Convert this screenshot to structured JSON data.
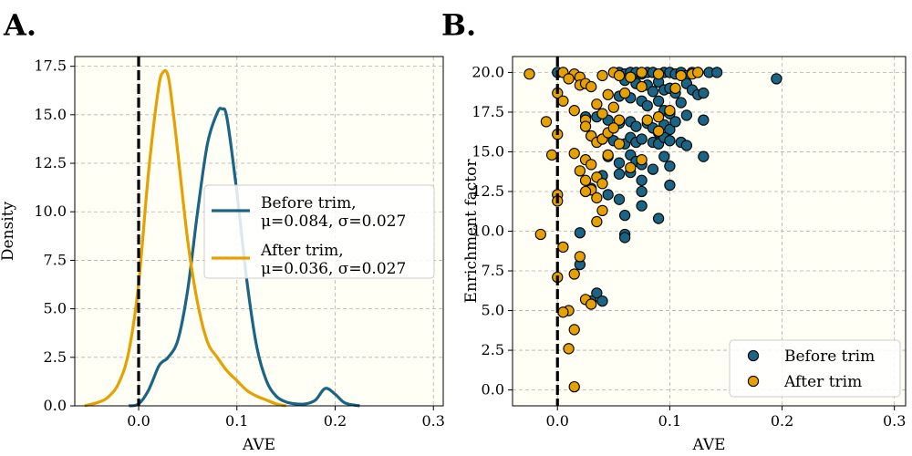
{
  "colors": {
    "before": "#1a6585",
    "after": "#e6a000",
    "plot_bg": "#fffff5",
    "grid": "#b0b0b0",
    "zero_line": "#000000"
  },
  "chart_data": [
    {
      "panel_label": "A.",
      "type": "line",
      "xlabel": "AVE",
      "ylabel": "Density",
      "xlim": [
        -0.065,
        0.31
      ],
      "ylim": [
        0,
        18
      ],
      "xticks": [
        0.0,
        0.1,
        0.2,
        0.3
      ],
      "xtick_labels": [
        "0.0",
        "0.1",
        "0.2",
        "0.3"
      ],
      "yticks": [
        0,
        2.5,
        5,
        7.5,
        10,
        12.5,
        15,
        17.5
      ],
      "ytick_labels": [
        "0.0",
        "2.5",
        "5.0",
        "7.5",
        "10.0",
        "12.5",
        "15.0",
        "17.5"
      ],
      "grid": true,
      "vline_x": 0,
      "legend_position": "center-right",
      "series": [
        {
          "name": "Before trim,\nμ=0.084, σ=0.027",
          "legend_lines": [
            "Before trim,",
            "μ=0.084, σ=0.027"
          ],
          "color_key": "before",
          "x": [
            -0.01,
            0.0,
            0.01,
            0.02,
            0.025,
            0.03,
            0.04,
            0.05,
            0.06,
            0.07,
            0.08,
            0.085,
            0.09,
            0.1,
            0.11,
            0.12,
            0.13,
            0.14,
            0.15,
            0.16,
            0.17,
            0.18,
            0.19,
            0.2,
            0.21,
            0.225
          ],
          "y": [
            0.0,
            0.1,
            0.8,
            2.0,
            2.3,
            2.5,
            3.4,
            6.0,
            10.0,
            13.5,
            15.1,
            15.3,
            14.8,
            11.0,
            6.5,
            3.1,
            1.3,
            0.5,
            0.2,
            0.1,
            0.1,
            0.3,
            0.9,
            0.6,
            0.15,
            0.0
          ]
        },
        {
          "name": "After trim,\nμ=0.036, σ=0.027",
          "legend_lines": [
            "After trim,",
            "μ=0.036, σ=0.027"
          ],
          "color_key": "after",
          "x": [
            -0.055,
            -0.04,
            -0.03,
            -0.02,
            -0.01,
            0.0,
            0.01,
            0.02,
            0.025,
            0.03,
            0.035,
            0.04,
            0.05,
            0.06,
            0.07,
            0.08,
            0.09,
            0.1,
            0.11,
            0.12,
            0.13,
            0.14,
            0.15
          ],
          "y": [
            0.0,
            0.2,
            0.5,
            1.2,
            2.8,
            6.3,
            12.0,
            16.3,
            17.2,
            17.0,
            15.2,
            13.0,
            8.5,
            5.3,
            3.3,
            2.5,
            1.8,
            1.3,
            0.8,
            0.5,
            0.3,
            0.1,
            0.0
          ]
        }
      ]
    },
    {
      "panel_label": "B.",
      "type": "scatter",
      "xlabel": "AVE",
      "ylabel": "Enrichment factor",
      "xlim": [
        -0.04,
        0.31
      ],
      "ylim": [
        -1.0,
        21.0
      ],
      "xticks": [
        0.0,
        0.1,
        0.2,
        0.3
      ],
      "xtick_labels": [
        "0.0",
        "0.1",
        "0.2",
        "0.3"
      ],
      "yticks": [
        0,
        2.5,
        5,
        7.5,
        10,
        12.5,
        15,
        17.5,
        20
      ],
      "ytick_labels": [
        "0.0",
        "2.5",
        "5.0",
        "7.5",
        "10.0",
        "12.5",
        "15.0",
        "17.5",
        "20.0"
      ],
      "grid": true,
      "vline_x": 0,
      "legend_position": "lower-right",
      "series": [
        {
          "name": "Before trim",
          "color_key": "before",
          "points": [
            [
              0.0,
              20.0
            ],
            [
              0.055,
              20.0
            ],
            [
              0.06,
              19.9
            ],
            [
              0.065,
              20.0
            ],
            [
              0.07,
              20.0
            ],
            [
              0.075,
              19.9
            ],
            [
              0.08,
              20.0
            ],
            [
              0.085,
              20.0
            ],
            [
              0.09,
              19.9
            ],
            [
              0.095,
              20.0
            ],
            [
              0.1,
              20.0
            ],
            [
              0.105,
              19.9
            ],
            [
              0.11,
              20.0
            ],
            [
              0.115,
              19.8
            ],
            [
              0.12,
              20.0
            ],
            [
              0.125,
              20.0
            ],
            [
              0.135,
              20.0
            ],
            [
              0.142,
              20.0
            ],
            [
              0.195,
              19.6
            ],
            [
              0.06,
              19.5
            ],
            [
              0.07,
              19.3
            ],
            [
              0.08,
              19.2
            ],
            [
              0.085,
              18.8
            ],
            [
              0.09,
              19.4
            ],
            [
              0.095,
              18.9
            ],
            [
              0.1,
              19.0
            ],
            [
              0.105,
              18.7
            ],
            [
              0.115,
              19.3
            ],
            [
              0.12,
              18.9
            ],
            [
              0.125,
              18.6
            ],
            [
              0.13,
              18.7
            ],
            [
              0.055,
              18.5
            ],
            [
              0.065,
              18.4
            ],
            [
              0.075,
              18.2
            ],
            [
              0.08,
              17.9
            ],
            [
              0.09,
              18.2
            ],
            [
              0.095,
              17.6
            ],
            [
              0.1,
              17.4
            ],
            [
              0.11,
              18.1
            ],
            [
              0.115,
              17.3
            ],
            [
              0.025,
              17.2
            ],
            [
              0.035,
              17.2
            ],
            [
              0.045,
              17.0
            ],
            [
              0.055,
              16.8
            ],
            [
              0.065,
              16.9
            ],
            [
              0.07,
              16.6
            ],
            [
              0.08,
              16.8
            ],
            [
              0.085,
              16.5
            ],
            [
              0.09,
              16.2
            ],
            [
              0.095,
              16.7
            ],
            [
              0.1,
              16.4
            ],
            [
              0.105,
              16.9
            ],
            [
              0.13,
              17.0
            ],
            [
              0.03,
              16.0
            ],
            [
              0.04,
              15.8
            ],
            [
              0.05,
              15.7
            ],
            [
              0.06,
              15.5
            ],
            [
              0.065,
              15.9
            ],
            [
              0.07,
              15.6
            ],
            [
              0.075,
              15.8
            ],
            [
              0.085,
              15.6
            ],
            [
              0.09,
              15.5
            ],
            [
              0.095,
              15.9
            ],
            [
              0.1,
              15.7
            ],
            [
              0.11,
              15.6
            ],
            [
              0.115,
              15.4
            ],
            [
              0.045,
              14.7
            ],
            [
              0.055,
              14.3
            ],
            [
              0.065,
              14.8
            ],
            [
              0.07,
              14.4
            ],
            [
              0.075,
              14.2
            ],
            [
              0.085,
              13.9
            ],
            [
              0.095,
              14.7
            ],
            [
              0.1,
              14.1
            ],
            [
              0.13,
              14.7
            ],
            [
              0.04,
              13.5
            ],
            [
              0.055,
              13.6
            ],
            [
              0.065,
              13.7
            ],
            [
              0.075,
              13.2
            ],
            [
              0.1,
              12.9
            ],
            [
              0.03,
              12.7
            ],
            [
              0.045,
              12.3
            ],
            [
              0.055,
              12.0
            ],
            [
              0.075,
              12.5
            ],
            [
              0.06,
              11.0
            ],
            [
              0.075,
              11.6
            ],
            [
              0.09,
              10.8
            ],
            [
              0.02,
              9.9
            ],
            [
              0.06,
              9.8
            ],
            [
              0.06,
              9.6
            ],
            [
              0.02,
              7.9
            ],
            [
              0.035,
              6.1
            ],
            [
              0.03,
              5.6
            ],
            [
              0.04,
              5.6
            ]
          ]
        },
        {
          "name": "After trim",
          "color_key": "after",
          "points": [
            [
              -0.025,
              19.9
            ],
            [
              0.005,
              20.0
            ],
            [
              0.015,
              19.9
            ],
            [
              0.02,
              19.7
            ],
            [
              0.04,
              19.8
            ],
            [
              0.05,
              20.0
            ],
            [
              0.055,
              19.8
            ],
            [
              0.065,
              19.7
            ],
            [
              0.075,
              20.0
            ],
            [
              0.09,
              19.9
            ],
            [
              0.11,
              19.8
            ],
            [
              0.12,
              19.9
            ],
            [
              0.125,
              20.0
            ],
            [
              0.0,
              18.7
            ],
            [
              0.005,
              18.2
            ],
            [
              0.01,
              19.6
            ],
            [
              0.02,
              19.2
            ],
            [
              0.025,
              19.3
            ],
            [
              0.03,
              19.1
            ],
            [
              0.045,
              18.6
            ],
            [
              0.06,
              18.7
            ],
            [
              0.075,
              19.1
            ],
            [
              0.105,
              19.0
            ],
            [
              -0.01,
              16.9
            ],
            [
              0.015,
              17.6
            ],
            [
              0.025,
              17.0
            ],
            [
              0.035,
              18.0
            ],
            [
              0.04,
              17.4
            ],
            [
              0.05,
              17.8
            ],
            [
              0.055,
              17.0
            ],
            [
              0.08,
              17.0
            ],
            [
              0.09,
              17.2
            ],
            [
              0.1,
              17.6
            ],
            [
              0.0,
              16.1
            ],
            [
              0.025,
              16.6
            ],
            [
              0.03,
              16.0
            ],
            [
              0.035,
              15.6
            ],
            [
              0.04,
              15.8
            ],
            [
              0.045,
              16.2
            ],
            [
              0.05,
              16.5
            ],
            [
              0.055,
              15.5
            ],
            [
              0.09,
              16.3
            ],
            [
              -0.005,
              14.8
            ],
            [
              0.015,
              14.9
            ],
            [
              0.025,
              14.5
            ],
            [
              0.03,
              14.2
            ],
            [
              0.045,
              14.8
            ],
            [
              0.065,
              14.0
            ],
            [
              0.075,
              14.5
            ],
            [
              0.02,
              13.8
            ],
            [
              0.025,
              13.2
            ],
            [
              0.035,
              13.4
            ],
            [
              0.04,
              13.0
            ],
            [
              0.03,
              12.6
            ],
            [
              0.025,
              12.5
            ],
            [
              0.035,
              12.1
            ],
            [
              0.04,
              11.3
            ],
            [
              0.035,
              10.6
            ],
            [
              0.0,
              12.3
            ],
            [
              0.0,
              11.9
            ],
            [
              -0.015,
              9.8
            ],
            [
              0.005,
              9.0
            ],
            [
              0.02,
              8.4
            ],
            [
              0.015,
              7.3
            ],
            [
              0.0,
              7.1
            ],
            [
              0.025,
              5.7
            ],
            [
              0.03,
              5.4
            ],
            [
              0.01,
              5.0
            ],
            [
              0.005,
              4.9
            ],
            [
              0.015,
              3.8
            ],
            [
              0.01,
              2.6
            ],
            [
              0.015,
              0.2
            ]
          ]
        }
      ]
    }
  ]
}
